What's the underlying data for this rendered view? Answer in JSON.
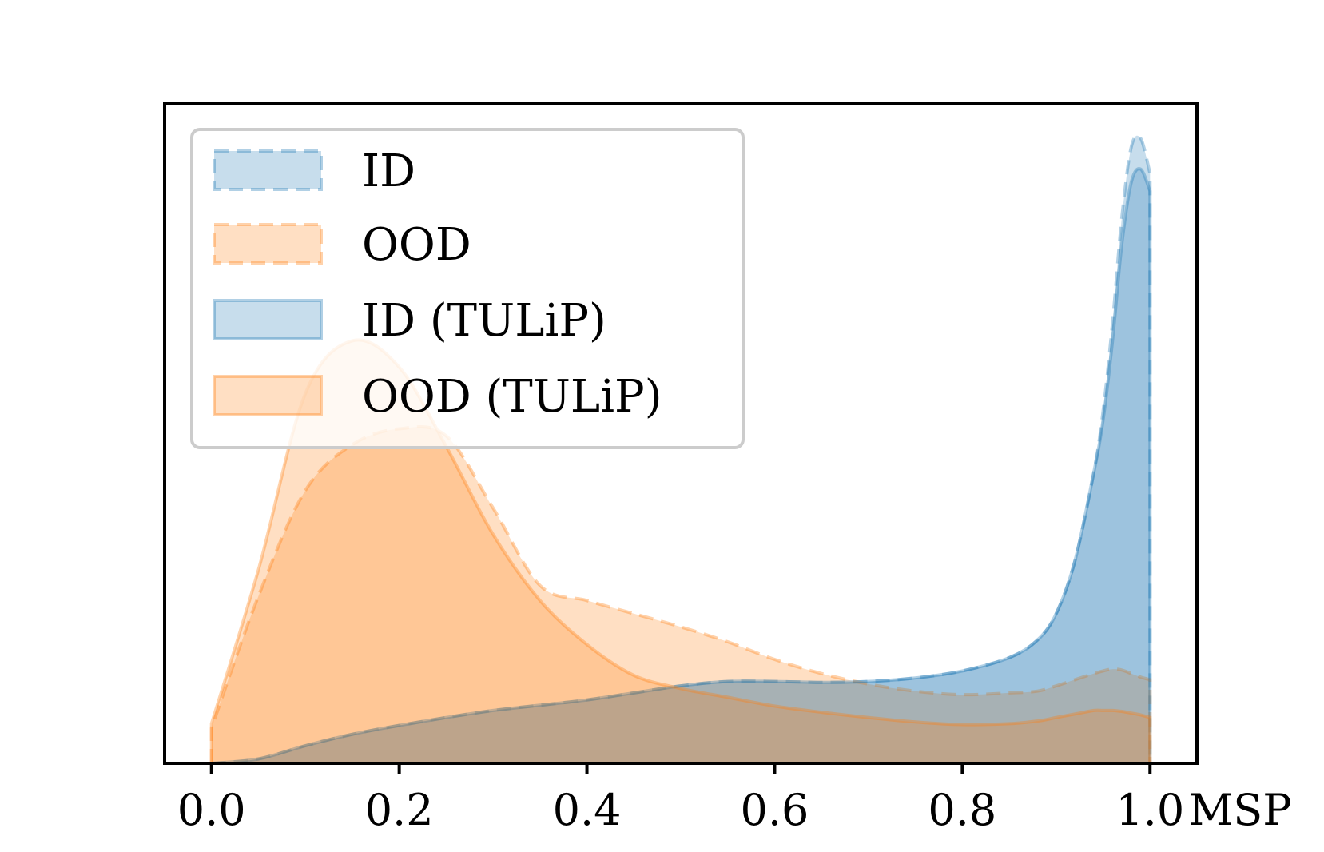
{
  "chart_data": {
    "type": "area",
    "xlabel": "MSP",
    "ylabel": "",
    "xlim": [
      -0.05,
      1.05
    ],
    "ylim": [
      0,
      7.5
    ],
    "x_ticks": [
      "0.0",
      "0.2",
      "0.4",
      "0.6",
      "0.8",
      "1.0"
    ],
    "y_ticks": [],
    "grid": false,
    "legend_position": "upper-left",
    "colors": {
      "id": "#1f77b4",
      "ood": "#ff7f0e"
    },
    "x": [
      0.0,
      0.05,
      0.1,
      0.15,
      0.2,
      0.25,
      0.3,
      0.35,
      0.4,
      0.45,
      0.5,
      0.55,
      0.6,
      0.65,
      0.7,
      0.75,
      0.8,
      0.85,
      0.88,
      0.9,
      0.92,
      0.94,
      0.95,
      0.96,
      0.97,
      0.98,
      0.99,
      1.0
    ],
    "series": [
      {
        "name": "ID",
        "line_style": "dashed",
        "color": "#1f77b4",
        "values": [
          0.0,
          0.05,
          0.2,
          0.33,
          0.43,
          0.52,
          0.6,
          0.66,
          0.72,
          0.8,
          0.88,
          0.93,
          0.93,
          0.92,
          0.93,
          0.97,
          1.05,
          1.2,
          1.4,
          1.7,
          2.3,
          3.3,
          4.0,
          5.0,
          6.2,
          7.0,
          7.1,
          6.7
        ]
      },
      {
        "name": "OOD",
        "line_style": "dashed",
        "color": "#ff7f0e",
        "values": [
          0.4,
          1.9,
          3.1,
          3.62,
          3.8,
          3.72,
          2.9,
          2.02,
          1.85,
          1.7,
          1.55,
          1.38,
          1.18,
          1.02,
          0.9,
          0.82,
          0.78,
          0.8,
          0.82,
          0.88,
          0.95,
          1.02,
          1.05,
          1.07,
          1.06,
          1.02,
          0.98,
          0.95
        ]
      },
      {
        "name": "ID (TULiP)",
        "line_style": "solid",
        "color": "#1f77b4",
        "values": [
          0.0,
          0.05,
          0.2,
          0.33,
          0.43,
          0.52,
          0.6,
          0.66,
          0.72,
          0.8,
          0.88,
          0.93,
          0.93,
          0.92,
          0.93,
          0.97,
          1.05,
          1.2,
          1.4,
          1.7,
          2.3,
          3.3,
          3.9,
          4.8,
          5.9,
          6.6,
          6.75,
          6.5
        ]
      },
      {
        "name": "OOD (TULiP)",
        "line_style": "solid",
        "color": "#ff7f0e",
        "values": [
          0.45,
          2.2,
          4.2,
          4.8,
          4.5,
          3.6,
          2.6,
          1.85,
          1.35,
          1.0,
          0.85,
          0.75,
          0.65,
          0.58,
          0.52,
          0.47,
          0.44,
          0.45,
          0.48,
          0.52,
          0.56,
          0.6,
          0.6,
          0.6,
          0.59,
          0.57,
          0.55,
          0.52
        ]
      }
    ]
  }
}
